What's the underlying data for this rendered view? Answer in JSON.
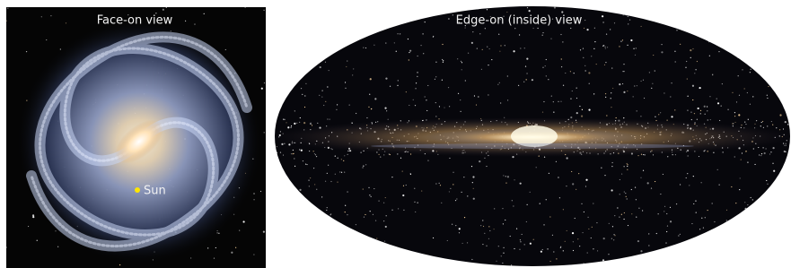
{
  "panels": [
    {
      "title": "Face-on view",
      "annotation": "Sun"
    },
    {
      "title": "Edge-on (inside) view"
    }
  ]
}
